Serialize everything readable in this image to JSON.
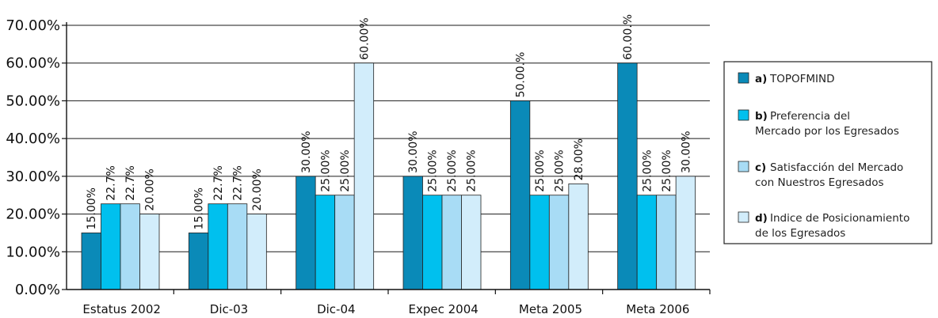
{
  "chart_data": {
    "type": "bar",
    "categories": [
      "Estatus 2002",
      "Dic-03",
      "Dic-04",
      "Expec 2004",
      "Meta 2005",
      "Meta 2006"
    ],
    "ylim": [
      0,
      70
    ],
    "yticks": [
      "0.00%",
      "10.00%",
      "20.00%",
      "30.00%",
      "40.00%",
      "50.00%",
      "60.00%",
      "70.00%"
    ],
    "grid": true,
    "legend_position": "right",
    "series": [
      {
        "letter": "a)",
        "name": "TOPOFMIND",
        "color": "#0a8ab8",
        "values": [
          15,
          15,
          30,
          30,
          50,
          60
        ],
        "labels": [
          "15.00%",
          "15.00%",
          "30.00%",
          "30.00%",
          "50.00.%",
          "60.00.%"
        ]
      },
      {
        "letter": "b)",
        "name": "Preferencia del Mercado por los Egresados",
        "legend_lines": [
          "Preferencia del",
          "Mercado por los Egresados"
        ],
        "color": "#00c0ee",
        "values": [
          22.7,
          22.7,
          25,
          25,
          25,
          25
        ],
        "labels": [
          "22.7%",
          "22.7%",
          "25.00%",
          "25.00%",
          "25.00%",
          "25.00%"
        ]
      },
      {
        "letter": "c)",
        "name": "Satisfacción del Mercado con Nuestros Egresados",
        "legend_lines": [
          "Satisfacción del Mercado",
          "con Nuestros Egresados"
        ],
        "color": "#a8dcf5",
        "values": [
          22.7,
          22.7,
          25,
          25,
          25,
          25
        ],
        "labels": [
          "22.7%",
          "22.7%",
          "25.00%",
          "25.00%",
          "25.00%",
          "25.00%"
        ]
      },
      {
        "letter": "d)",
        "name": "Indice de Posicionamiento de los Egresados",
        "legend_lines": [
          "Indice de Posicionamiento",
          "de los Egresados"
        ],
        "color": "#d2edfb",
        "values": [
          20,
          20,
          60,
          25,
          28,
          30
        ],
        "labels": [
          "20.00%",
          "20.00%",
          "60.00%",
          "25.00%",
          "28.00%",
          "30.00%"
        ]
      }
    ]
  }
}
